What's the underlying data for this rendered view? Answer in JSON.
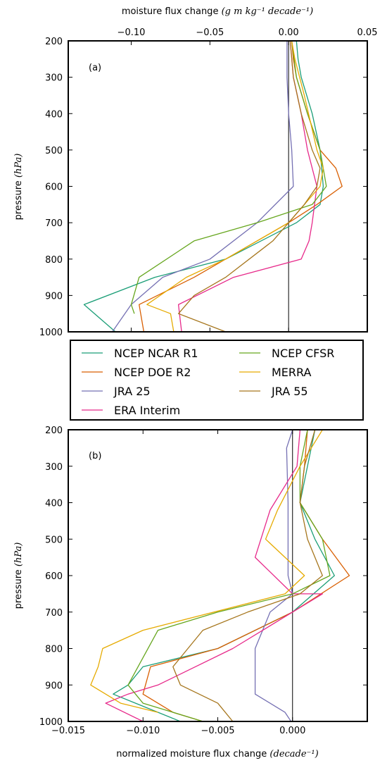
{
  "chart_data": [
    {
      "type": "line",
      "panel_label": "(a)",
      "x_axis_position": "top",
      "xlabel": "moisture flux change",
      "xlabel_units": "(g m kg⁻¹ decade⁻¹)",
      "ylabel": "pressure",
      "ylabel_units": "(hPa)",
      "xlim": [
        -0.14,
        0.05
      ],
      "ylim": [
        1000,
        200
      ],
      "xticks": [
        -0.1,
        -0.05,
        0.0,
        0.05
      ],
      "xtick_labels": [
        "−0.10",
        "−0.05",
        "0.00",
        "0.05"
      ],
      "yticks": [
        200,
        300,
        400,
        500,
        600,
        700,
        800,
        900,
        1000
      ],
      "ytick_labels": [
        "200",
        "300",
        "400",
        "500",
        "600",
        "700",
        "800",
        "900",
        "1000"
      ],
      "zero_line": true,
      "series": [
        {
          "name": "NCEP NCAR R1",
          "color": "#1b9e77",
          "x": [
            0.005,
            0.006,
            0.008,
            0.015,
            0.02,
            0.022,
            0.02,
            0.005,
            -0.04,
            -0.085,
            -0.13,
            -0.11
          ],
          "y": [
            200,
            250,
            300,
            400,
            500,
            600,
            650,
            700,
            800,
            850,
            925,
            1000
          ]
        },
        {
          "name": "NCEP DOE R2",
          "color": "#d95f02",
          "x": [
            0.002,
            0.003,
            0.005,
            0.012,
            0.02,
            0.03,
            0.034,
            0.018,
            0.0,
            -0.06,
            -0.095,
            -0.092
          ],
          "y": [
            200,
            250,
            300,
            400,
            500,
            550,
            600,
            650,
            700,
            850,
            925,
            1000
          ]
        },
        {
          "name": "JRA 25",
          "color": "#7570b3",
          "x": [
            -0.001,
            -0.001,
            -0.001,
            0.0,
            0.002,
            0.003,
            -0.02,
            -0.05,
            -0.08,
            -0.1,
            -0.112
          ],
          "y": [
            200,
            250,
            300,
            400,
            500,
            600,
            700,
            800,
            850,
            925,
            1000
          ]
        },
        {
          "name": "ERA Interim",
          "color": "#e7298a",
          "x": [
            0.001,
            0.003,
            0.008,
            0.012,
            0.018,
            0.015,
            0.013,
            0.008,
            -0.035,
            -0.07,
            -0.068
          ],
          "y": [
            200,
            300,
            400,
            500,
            600,
            700,
            750,
            800,
            850,
            925,
            1000
          ]
        },
        {
          "name": "NCEP CFSR",
          "color": "#66a61e",
          "x": [
            0.002,
            0.005,
            0.012,
            0.02,
            0.024,
            0.015,
            -0.02,
            -0.06,
            -0.095,
            -0.1,
            -0.098
          ],
          "y": [
            200,
            300,
            400,
            500,
            600,
            650,
            700,
            750,
            850,
            925,
            950
          ]
        },
        {
          "name": "MERRA",
          "color": "#e6ab02",
          "x": [
            0.002,
            0.004,
            0.01,
            0.018,
            0.022,
            0.02,
            0.0,
            -0.04,
            -0.065,
            -0.09,
            -0.075,
            -0.073
          ],
          "y": [
            200,
            250,
            350,
            500,
            550,
            600,
            700,
            800,
            850,
            925,
            950,
            1000
          ]
        },
        {
          "name": "JRA 55",
          "color": "#a6761d",
          "x": [
            0.001,
            0.003,
            0.008,
            0.015,
            0.02,
            0.018,
            0.01,
            -0.01,
            -0.04,
            -0.06,
            -0.07,
            -0.04
          ],
          "y": [
            200,
            300,
            400,
            500,
            550,
            600,
            650,
            750,
            850,
            900,
            950,
            1000
          ]
        }
      ]
    },
    {
      "type": "line",
      "panel_label": "(b)",
      "x_axis_position": "bottom",
      "xlabel": "normalized moisture flux change",
      "xlabel_units": "(decade⁻¹)",
      "ylabel": "pressure",
      "ylabel_units": "(hPa)",
      "xlim": [
        -0.015,
        0.005
      ],
      "ylim": [
        1000,
        200
      ],
      "xticks": [
        -0.015,
        -0.01,
        -0.005,
        0.0
      ],
      "xtick_labels": [
        "−0.015",
        "−0.010",
        "−0.005",
        "0.000"
      ],
      "yticks": [
        200,
        300,
        400,
        500,
        600,
        700,
        800,
        900,
        1000
      ],
      "ytick_labels": [
        "200",
        "300",
        "400",
        "500",
        "600",
        "700",
        "800",
        "900",
        "1000"
      ],
      "zero_line": true,
      "series": [
        {
          "name": "NCEP NCAR R1",
          "color": "#1b9e77",
          "x": [
            0.0015,
            0.001,
            0.0005,
            0.0015,
            0.0028,
            0.0,
            -0.005,
            -0.01,
            -0.011,
            -0.012,
            -0.0105,
            -0.0075
          ],
          "y": [
            200,
            300,
            400,
            500,
            600,
            700,
            800,
            850,
            900,
            925,
            950,
            1000
          ]
        },
        {
          "name": "NCEP DOE R2",
          "color": "#d95f02",
          "x": [
            0.001,
            0.0008,
            0.0005,
            0.002,
            0.0038,
            0.0,
            -0.005,
            -0.0095,
            -0.01,
            -0.008,
            -0.006
          ],
          "y": [
            200,
            300,
            400,
            500,
            600,
            700,
            800,
            850,
            925,
            975,
            1000
          ]
        },
        {
          "name": "JRA 25",
          "color": "#7570b3",
          "x": [
            0.0,
            -0.0004,
            -0.0003,
            -0.0003,
            0.0,
            -0.0015,
            -0.0025,
            -0.0025,
            -0.0025,
            -0.0005,
            -0.0001
          ],
          "y": [
            200,
            250,
            400,
            600,
            650,
            700,
            800,
            850,
            925,
            975,
            1000
          ]
        },
        {
          "name": "ERA Interim",
          "color": "#e7298a",
          "x": [
            0.0005,
            0.0003,
            -0.0015,
            -0.0025,
            0.0,
            0.002,
            -0.004,
            -0.009,
            -0.011,
            -0.0125,
            -0.01
          ],
          "y": [
            200,
            300,
            420,
            550,
            650,
            650,
            800,
            900,
            925,
            950,
            1000
          ]
        },
        {
          "name": "NCEP CFSR",
          "color": "#66a61e",
          "x": [
            0.001,
            0.0005,
            0.0005,
            0.002,
            0.0025,
            0.0,
            -0.005,
            -0.009,
            -0.011,
            -0.01,
            -0.006
          ],
          "y": [
            200,
            300,
            400,
            500,
            600,
            650,
            700,
            750,
            900,
            950,
            1000
          ]
        },
        {
          "name": "MERRA",
          "color": "#e6ab02",
          "x": [
            0.002,
            0.0005,
            -0.001,
            -0.0018,
            0.0008,
            -0.0005,
            -0.01,
            -0.0127,
            -0.013,
            -0.0135,
            -0.0115,
            -0.009
          ],
          "y": [
            200,
            300,
            420,
            500,
            600,
            650,
            750,
            800,
            850,
            900,
            950,
            975
          ]
        },
        {
          "name": "JRA 55",
          "color": "#a6761d",
          "x": [
            0.0015,
            0.0008,
            0.0005,
            0.001,
            0.002,
            0.0005,
            -0.003,
            -0.006,
            -0.008,
            -0.0075,
            -0.005,
            -0.004
          ],
          "y": [
            200,
            300,
            400,
            500,
            600,
            650,
            700,
            750,
            850,
            900,
            950,
            1000
          ]
        }
      ]
    }
  ],
  "legend": {
    "columns": 2,
    "entries": [
      {
        "name": "NCEP NCAR R1",
        "color": "#1b9e77"
      },
      {
        "name": "NCEP CFSR",
        "color": "#66a61e"
      },
      {
        "name": "NCEP DOE R2",
        "color": "#d95f02"
      },
      {
        "name": "MERRA",
        "color": "#e6ab02"
      },
      {
        "name": "JRA 25",
        "color": "#7570b3"
      },
      {
        "name": "JRA 55",
        "color": "#a6761d"
      },
      {
        "name": "ERA Interim",
        "color": "#e7298a"
      }
    ]
  }
}
